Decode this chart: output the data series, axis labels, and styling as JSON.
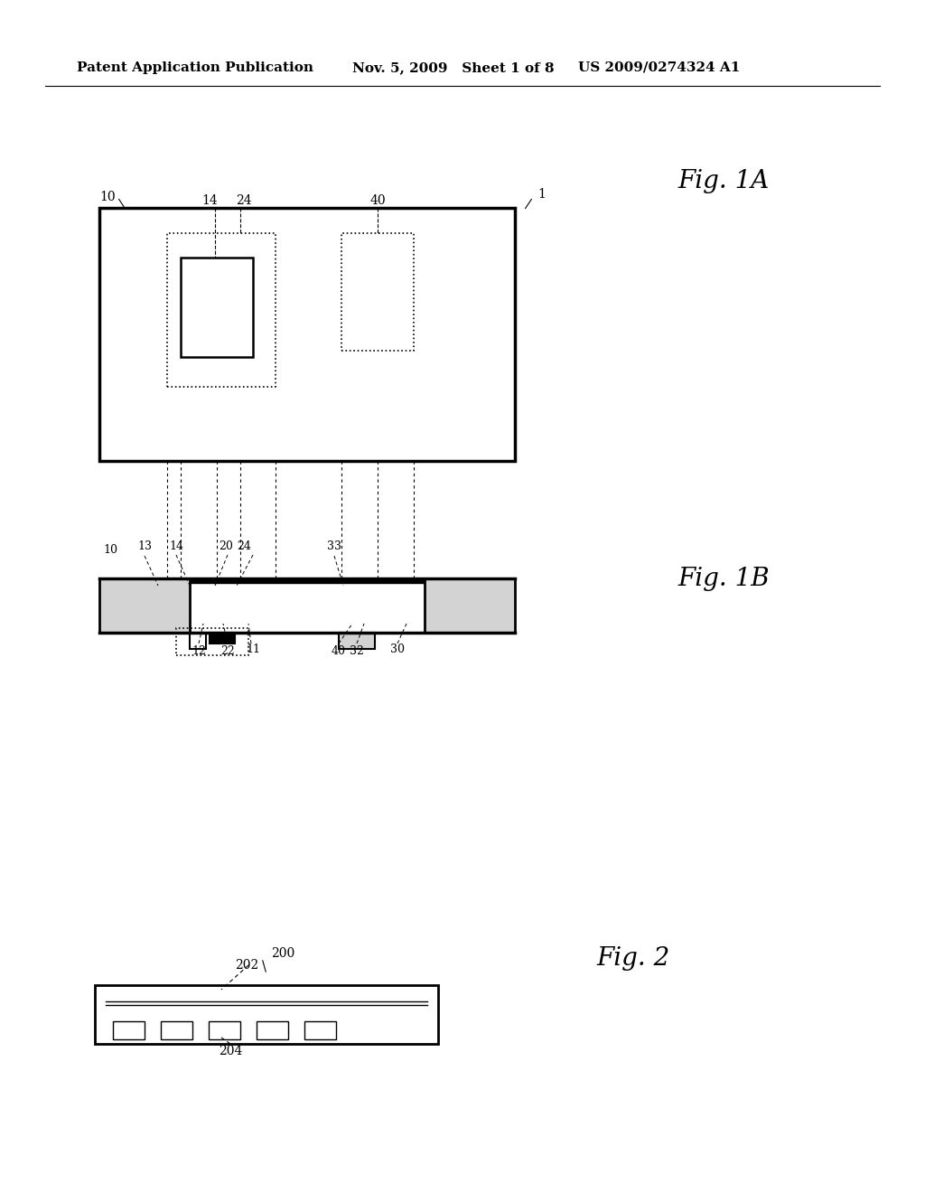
{
  "bg_color": "#ffffff",
  "header_left": "Patent Application Publication",
  "header_mid": "Nov. 5, 2009   Sheet 1 of 8",
  "header_right": "US 2009/0274324 A1",
  "fig1A_label": "Fig. 1A",
  "fig1B_label": "Fig. 1B",
  "fig2_label": "Fig. 2"
}
